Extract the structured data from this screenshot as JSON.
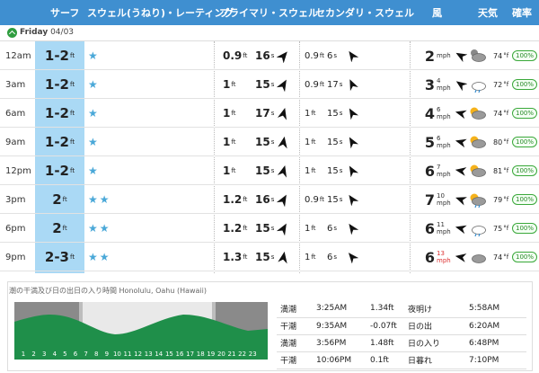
{
  "header": {
    "surf": "サーフ",
    "swell_rating": "スウェル(うねり)・レーティング",
    "primary_swell": "プライマリ・スウェル",
    "secondary_swell": "セカンダリ・スウェル",
    "wind": "風",
    "weather": "天気",
    "probability": "確率"
  },
  "day": {
    "name": "Friday",
    "date": "04/03"
  },
  "colors": {
    "header_bg": "#3f8fd0",
    "surf_col": "#aad9f5",
    "star": "#4aa8d8",
    "prob_green": "#3aa83a"
  },
  "rows": [
    {
      "time": "12am",
      "surf": "1-2",
      "surf_unit": "ft",
      "stars": "★",
      "p_h": "0.9",
      "p_u": "ft",
      "p_p": "16",
      "p_pu": "s",
      "s_h": "0.9",
      "s_u": "ft",
      "s_p": "6",
      "s_pu": "s",
      "w": "2",
      "w_sub": "",
      "w_u": "mph",
      "icon": "partly-cloudy-night-icon",
      "temp": "74",
      "tu": "°f",
      "prob": "100%"
    },
    {
      "time": "3am",
      "surf": "1-2",
      "surf_unit": "ft",
      "stars": "★",
      "p_h": "1",
      "p_u": "ft",
      "p_p": "15",
      "p_pu": "s",
      "s_h": "0.9",
      "s_u": "ft",
      "s_p": "17",
      "s_pu": "s",
      "w": "3",
      "w_sub": "4",
      "w_u": "mph",
      "icon": "rain-cloud-icon",
      "temp": "72",
      "tu": "°f",
      "prob": "100%"
    },
    {
      "time": "6am",
      "surf": "1-2",
      "surf_unit": "ft",
      "stars": "★",
      "p_h": "1",
      "p_u": "ft",
      "p_p": "17",
      "p_pu": "s",
      "s_h": "1",
      "s_u": "ft",
      "s_p": "15",
      "s_pu": "s",
      "w": "4",
      "w_sub": "6",
      "w_u": "mph",
      "icon": "partly-cloudy-sun-icon",
      "temp": "74",
      "tu": "°f",
      "prob": "100%"
    },
    {
      "time": "9am",
      "surf": "1-2",
      "surf_unit": "ft",
      "stars": "★",
      "p_h": "1",
      "p_u": "ft",
      "p_p": "15",
      "p_pu": "s",
      "s_h": "1",
      "s_u": "ft",
      "s_p": "15",
      "s_pu": "s",
      "w": "5",
      "w_sub": "6",
      "w_u": "mph",
      "icon": "partly-cloudy-sun-icon",
      "temp": "80",
      "tu": "°f",
      "prob": "100%"
    },
    {
      "time": "12pm",
      "surf": "1-2",
      "surf_unit": "ft",
      "stars": "★",
      "p_h": "1",
      "p_u": "ft",
      "p_p": "15",
      "p_pu": "s",
      "s_h": "1",
      "s_u": "ft",
      "s_p": "15",
      "s_pu": "s",
      "w": "6",
      "w_sub": "7",
      "w_u": "mph",
      "icon": "partly-cloudy-sun-icon",
      "temp": "81",
      "tu": "°f",
      "prob": "100%"
    },
    {
      "time": "3pm",
      "surf": "2",
      "surf_unit": "ft",
      "stars": "★★",
      "p_h": "1.2",
      "p_u": "ft",
      "p_p": "16",
      "p_pu": "s",
      "s_h": "0.9",
      "s_u": "ft",
      "s_p": "15",
      "s_pu": "s",
      "w": "7",
      "w_sub": "10",
      "w_u": "mph",
      "icon": "sun-rain-icon",
      "temp": "79",
      "tu": "°f",
      "prob": "100%"
    },
    {
      "time": "6pm",
      "surf": "2",
      "surf_unit": "ft",
      "stars": "★★",
      "p_h": "1.2",
      "p_u": "ft",
      "p_p": "15",
      "p_pu": "s",
      "s_h": "1",
      "s_u": "ft",
      "s_p": "6",
      "s_pu": "s",
      "w": "6",
      "w_sub": "11",
      "w_u": "mph",
      "icon": "rain-cloud-icon",
      "temp": "75",
      "tu": "°f",
      "prob": "100%"
    },
    {
      "time": "9pm",
      "surf": "2-3",
      "surf_unit": "ft",
      "stars": "★★",
      "p_h": "1.3",
      "p_u": "ft",
      "p_p": "15",
      "p_pu": "s",
      "s_h": "1",
      "s_u": "ft",
      "s_p": "6",
      "s_pu": "s",
      "w": "6",
      "w_sub": "13",
      "w_u": "mph",
      "icon": "cloud-icon",
      "temp": "74",
      "tu": "°f",
      "prob": "100%"
    }
  ],
  "tide": {
    "title": "潮の干満及び日の出日の入り時間 Honolulu, Oahu (Hawaii)",
    "hours": [
      "1",
      "2",
      "3",
      "4",
      "5",
      "6",
      "7",
      "8",
      "9",
      "10",
      "11",
      "12",
      "13",
      "14",
      "15",
      "16",
      "17",
      "18",
      "19",
      "20",
      "21",
      "22",
      "23"
    ],
    "events": [
      {
        "type": "満潮",
        "time": "3:25AM",
        "height": "1.34ft"
      },
      {
        "type": "干潮",
        "time": "9:35AM",
        "height": "-0.07ft"
      },
      {
        "type": "満潮",
        "time": "3:56PM",
        "height": "1.48ft"
      },
      {
        "type": "干潮",
        "time": "10:06PM",
        "height": "0.1ft"
      }
    ],
    "sun": [
      {
        "label": "夜明け",
        "time": "5:58AM"
      },
      {
        "label": "日の出",
        "time": "6:20AM"
      },
      {
        "label": "日の入り",
        "time": "6:48PM"
      },
      {
        "label": "日暮れ",
        "time": "7:10PM"
      }
    ]
  }
}
